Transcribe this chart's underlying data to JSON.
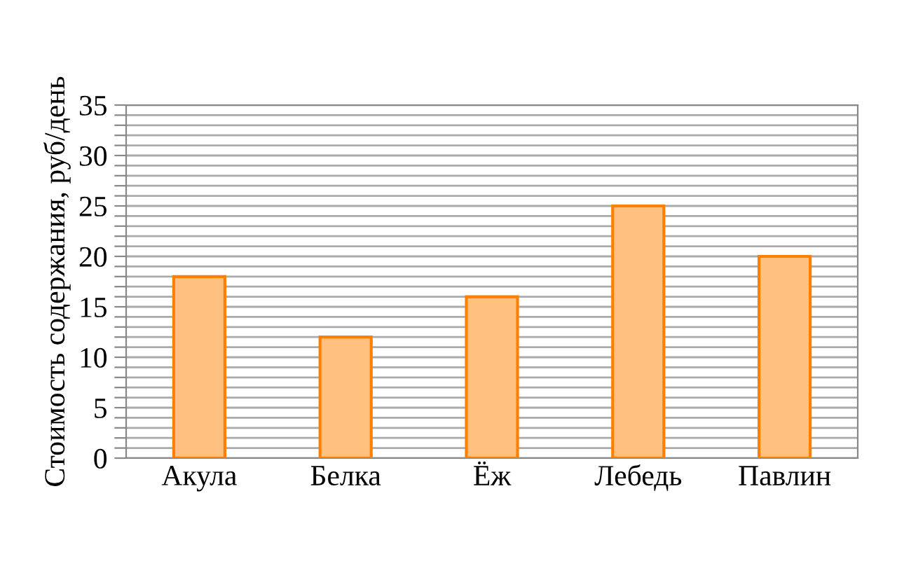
{
  "chart_data": {
    "type": "bar",
    "ylabel": "Стоимость содержания, руб/день",
    "categories": [
      "Акула",
      "Белка",
      "Ёж",
      "Лебедь",
      "Павлин"
    ],
    "values": [
      18,
      12,
      16,
      25,
      20
    ],
    "color": "#ffc080",
    "ylim": [
      0,
      35
    ],
    "yticks": [
      0,
      {
        "value": 1,
        "label": null
      },
      {
        "value": 2,
        "label": null
      },
      {
        "value": 3,
        "label": null
      },
      {
        "value": 4,
        "label": null
      },
      5,
      {
        "value": 6,
        "label": null
      },
      {
        "value": 7,
        "label": null
      },
      {
        "value": 8,
        "label": null
      },
      {
        "value": 9,
        "label": null
      },
      10,
      {
        "value": 11,
        "label": null
      },
      {
        "value": 12,
        "label": null
      },
      {
        "value": 13,
        "label": null
      },
      {
        "value": 14,
        "label": null
      },
      15,
      {
        "value": 16,
        "label": null
      },
      {
        "value": 17,
        "label": null
      },
      {
        "value": 18,
        "label": null
      },
      {
        "value": 19,
        "label": null
      },
      20,
      {
        "value": 21,
        "label": null
      },
      {
        "value": 22,
        "label": null
      },
      {
        "value": 23,
        "label": null
      },
      {
        "value": 24,
        "label": null
      },
      25,
      {
        "value": 26,
        "label": null
      },
      {
        "value": 27,
        "label": null
      },
      {
        "value": 28,
        "label": null
      },
      {
        "value": 29,
        "label": null
      },
      30,
      {
        "value": 31,
        "label": null
      },
      {
        "value": 32,
        "label": null
      },
      {
        "value": 33,
        "label": null
      },
      {
        "value": 34,
        "label": null
      },
      35
    ],
    "grid": "y"
  }
}
